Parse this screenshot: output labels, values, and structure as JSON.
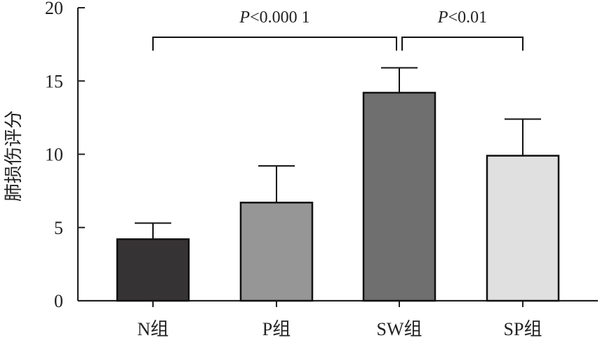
{
  "chart_data": {
    "type": "bar",
    "title": "",
    "xlabel": "",
    "ylabel": "肺损伤评分",
    "ylim": [
      0,
      20
    ],
    "yticks": [
      0,
      5,
      10,
      15,
      20
    ],
    "grid": false,
    "categories": [
      "N组",
      "P组",
      "SW组",
      "SP组"
    ],
    "values": [
      4.2,
      6.7,
      14.2,
      9.9
    ],
    "error_bars": [
      1.1,
      2.5,
      1.7,
      2.5
    ],
    "bar_colors": [
      "#363334",
      "#969696",
      "#6f6f6f",
      "#e0e0e0"
    ],
    "significance": [
      {
        "from": "N组",
        "to": "SW组",
        "label": "P<0.000 1"
      },
      {
        "from": "SW组",
        "to": "SP组",
        "label": "P<0.01"
      }
    ]
  }
}
